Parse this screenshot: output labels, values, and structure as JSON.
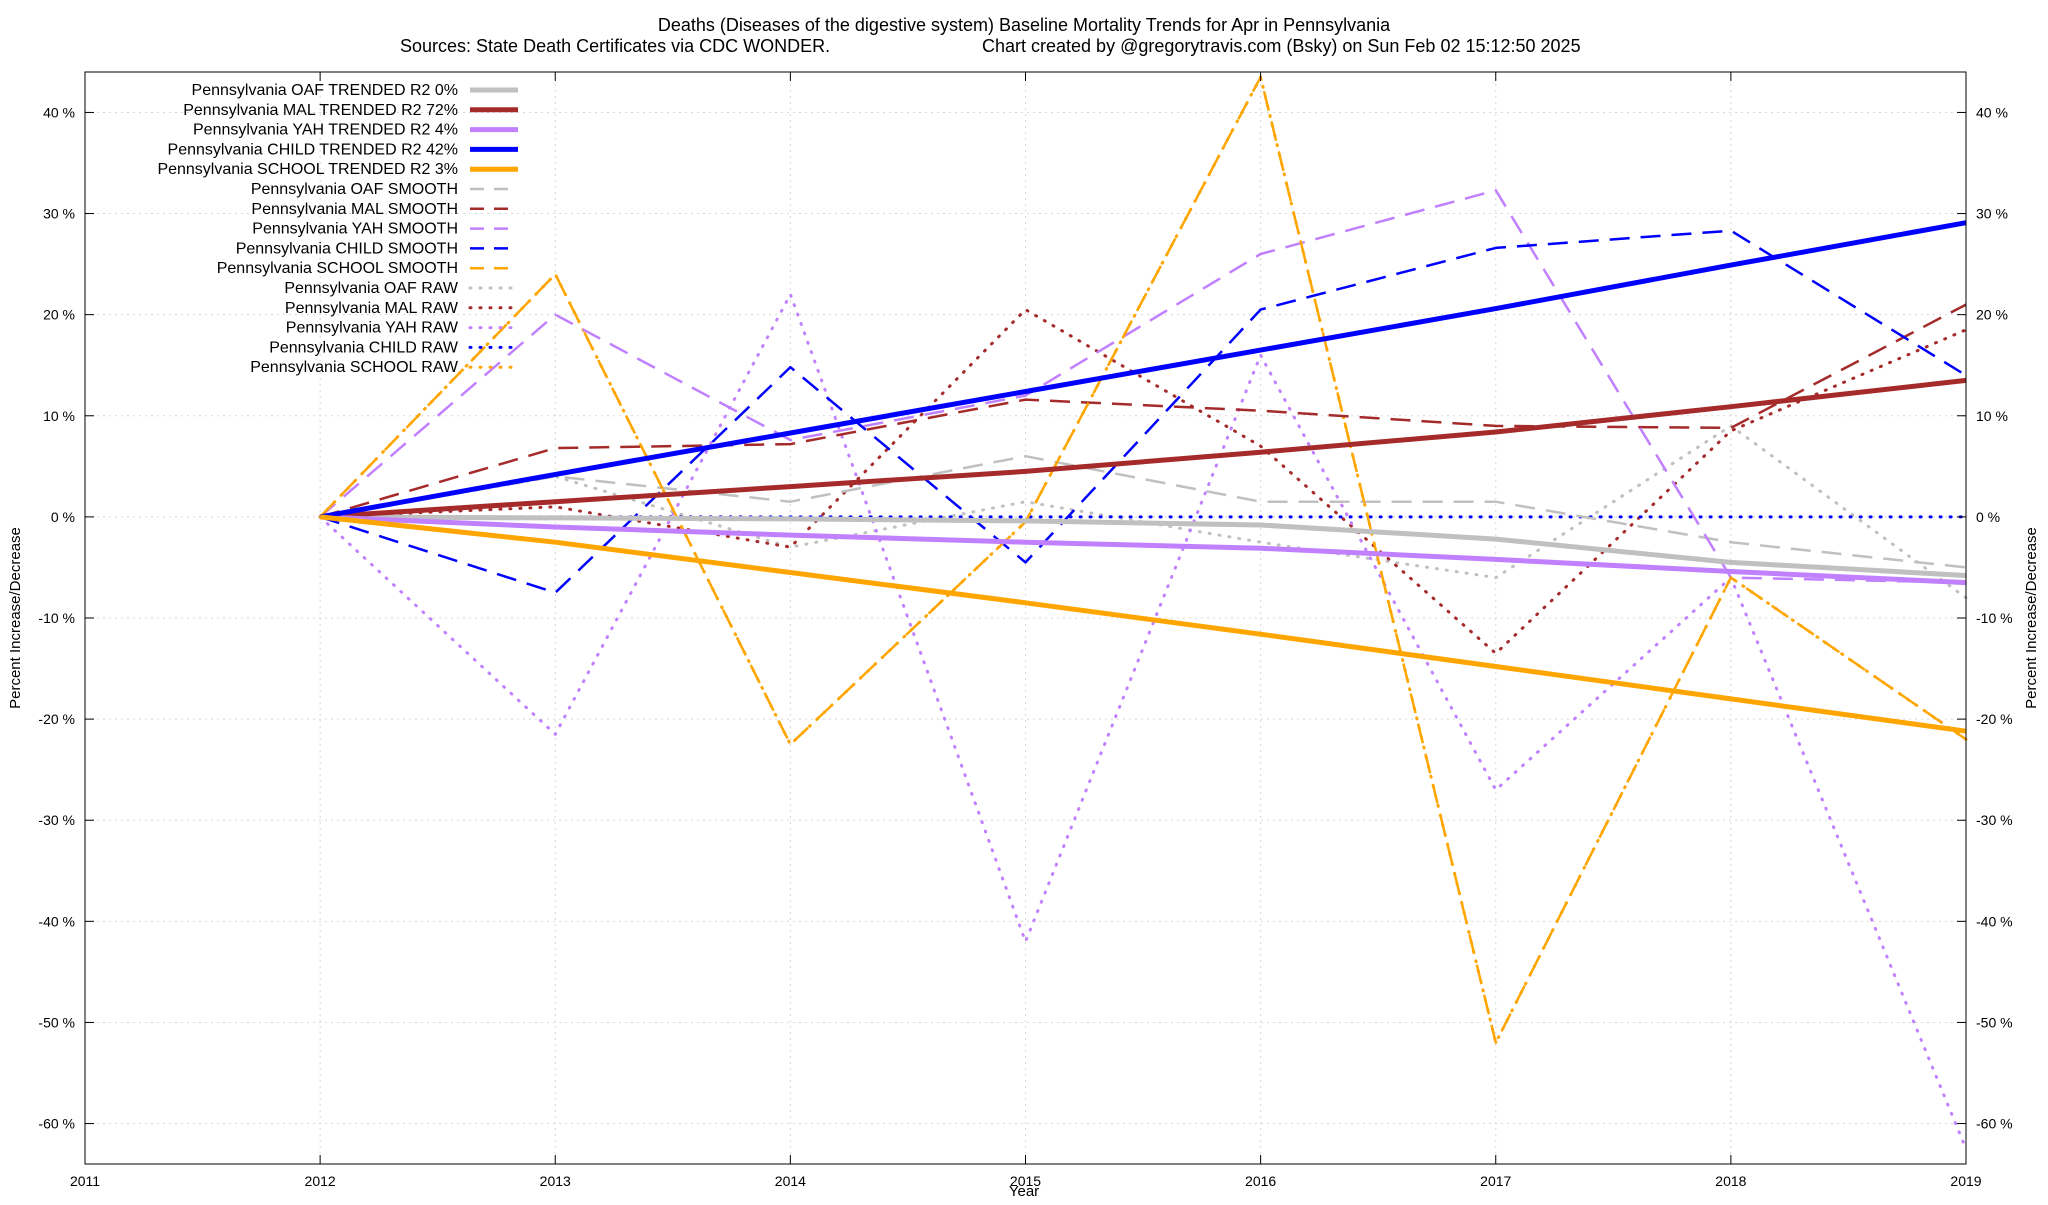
{
  "chart_data": {
    "type": "line",
    "title": "Deaths (Diseases of the digestive system)  Baseline Mortality Trends for Apr in Pennsylvania",
    "subtitle_left": "Sources: State Death Certificates via CDC WONDER.",
    "subtitle_right": "Chart created by @gregorytravis.com (Bsky) on Sun Feb 02 15:12:50 2025",
    "xlabel": "Year",
    "ylabel_left": "Percent Increase/Decrease",
    "ylabel_right": "Percent Increase/Decrease",
    "xlim": [
      2011,
      2019
    ],
    "ylim": [
      -64,
      44
    ],
    "grid": true,
    "legend_position": "top-left",
    "x_ticks": [
      2011,
      2012,
      2013,
      2014,
      2015,
      2016,
      2017,
      2018,
      2019
    ],
    "x_tick_labels": [
      "2011",
      "2012",
      "2013",
      "2014",
      "2015",
      "2016",
      "2017",
      "2018",
      "2019"
    ],
    "y_ticks": [
      40,
      30,
      20,
      10,
      0,
      -10,
      -20,
      -30,
      -40,
      -50,
      -60
    ],
    "y_tick_labels": [
      "40 %",
      "30 %",
      "20 %",
      "10 %",
      "0 %",
      "-10 %",
      "-20 %",
      "-30 %",
      "-40 %",
      "-50 %",
      "-60 %"
    ],
    "x": [
      2012,
      2013,
      2014,
      2015,
      2016,
      2017,
      2018,
      2019
    ],
    "series": [
      {
        "name": "Pennsylvania OAF TRENDED R2  0%",
        "color": "#c0c0c0",
        "style": "solid",
        "values": [
          0,
          -0.1,
          -0.2,
          -0.4,
          -0.8,
          -2.2,
          -4.5,
          -5.8
        ]
      },
      {
        "name": "Pennsylvania MAL TRENDED R2  72%",
        "color": "#a52a2a",
        "style": "solid",
        "values": [
          0,
          1.5,
          3.0,
          4.5,
          6.4,
          8.4,
          10.9,
          13.5
        ]
      },
      {
        "name": "Pennsylvania YAH TRENDED R2  4%",
        "color": "#c080ff",
        "style": "solid",
        "values": [
          0,
          -1.0,
          -1.8,
          -2.5,
          -3.1,
          -4.2,
          -5.4,
          -6.5
        ]
      },
      {
        "name": "Pennsylvania CHILD TRENDED R2  42%",
        "color": "#0000ff",
        "style": "solid",
        "values": [
          0,
          4.2,
          8.3,
          12.4,
          16.5,
          20.6,
          24.9,
          29.1
        ]
      },
      {
        "name": "Pennsylvania SCHOOL TRENDED R2  3%",
        "color": "#ffa500",
        "style": "solid",
        "values": [
          0,
          -2.5,
          -5.5,
          -8.5,
          -11.6,
          -14.8,
          -18.0,
          -21.2
        ]
      },
      {
        "name": "Pennsylvania OAF SMOOTH",
        "color": "#c0c0c0",
        "style": "dashed",
        "values": [
          0,
          4.0,
          1.5,
          6.0,
          1.5,
          1.5,
          -2.5,
          -5.0
        ]
      },
      {
        "name": "Pennsylvania MAL SMOOTH",
        "color": "#a52a2a",
        "style": "dashed",
        "values": [
          0,
          6.8,
          7.2,
          11.6,
          10.5,
          9.0,
          8.8,
          21.0
        ]
      },
      {
        "name": "Pennsylvania YAH SMOOTH",
        "color": "#c080ff",
        "style": "dashed",
        "values": [
          0,
          20.0,
          7.6,
          12.0,
          26.0,
          32.3,
          -6.0,
          -6.5
        ]
      },
      {
        "name": "Pennsylvania CHILD SMOOTH",
        "color": "#0000ff",
        "style": "dashed",
        "values": [
          0,
          -7.5,
          14.8,
          -4.5,
          20.5,
          26.6,
          28.3,
          14.0
        ]
      },
      {
        "name": "Pennsylvania SCHOOL SMOOTH",
        "color": "#ffa500",
        "style": "dashed",
        "values": [
          0,
          24.0,
          -22.5,
          -0.5,
          43.5,
          -52.0,
          -6.0,
          -22.0
        ]
      },
      {
        "name": "Pennsylvania OAF RAW",
        "color": "#c0c0c0",
        "style": "dotted",
        "values": [
          0,
          4.0,
          -3.0,
          1.5,
          -2.5,
          -6.0,
          9.0,
          -8.0
        ]
      },
      {
        "name": "Pennsylvania MAL RAW",
        "color": "#a52a2a",
        "style": "dotted",
        "values": [
          0,
          1.0,
          -3.0,
          20.5,
          7.0,
          -13.5,
          8.5,
          18.5
        ]
      },
      {
        "name": "Pennsylvania YAH RAW",
        "color": "#c080ff",
        "style": "dotted",
        "values": [
          0,
          -21.5,
          22.0,
          -42.0,
          16.0,
          -27.0,
          -6.0,
          -62.5
        ]
      },
      {
        "name": "Pennsylvania CHILD RAW",
        "color": "#0000ff",
        "style": "dotted",
        "values": [
          0,
          0,
          0,
          0,
          0,
          0,
          0,
          0
        ]
      },
      {
        "name": "Pennsylvania SCHOOL RAW",
        "color": "#ffa500",
        "style": "dotted",
        "values": [
          0,
          24.0,
          -22.5,
          -0.5,
          43.5,
          -52.0,
          -6.0,
          -22.0
        ]
      }
    ]
  }
}
